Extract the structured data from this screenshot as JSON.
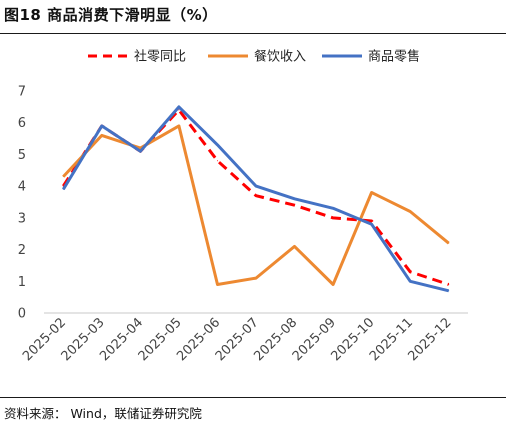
{
  "header": {
    "title": "图18 商品消费下滑明显（%）"
  },
  "footer": {
    "source": "资料来源：  Wind，联储证券研究院"
  },
  "chart_data": {
    "type": "line",
    "title": "商品消费下滑明显（%）",
    "xlabel": "",
    "ylabel": "",
    "categories": [
      "2025-02",
      "2025-03",
      "2025-04",
      "2025-05",
      "2025-06",
      "2025-07",
      "2025-08",
      "2025-09",
      "2025-10",
      "2025-11",
      "2025-12"
    ],
    "ylim": [
      0,
      7
    ],
    "yticks": [
      "0",
      "1",
      "2",
      "3",
      "4",
      "5",
      "6",
      "7"
    ],
    "grid": false,
    "legend_position": "top",
    "series": [
      {
        "name": "社零同比",
        "color": "#ff0000",
        "style": "dashed",
        "values": [
          4.0,
          5.9,
          5.1,
          6.4,
          4.8,
          3.7,
          3.4,
          3.0,
          2.9,
          1.3,
          0.9
        ]
      },
      {
        "name": "餐饮收入",
        "color": "#ed8931",
        "style": "solid",
        "values": [
          4.3,
          5.6,
          5.2,
          5.9,
          0.9,
          1.1,
          2.1,
          0.9,
          3.8,
          3.2,
          2.2
        ]
      },
      {
        "name": "商品零售",
        "color": "#4472c4",
        "style": "solid",
        "values": [
          3.9,
          5.9,
          5.1,
          6.5,
          5.3,
          4.0,
          3.6,
          3.3,
          2.8,
          1.0,
          0.7
        ]
      }
    ]
  }
}
